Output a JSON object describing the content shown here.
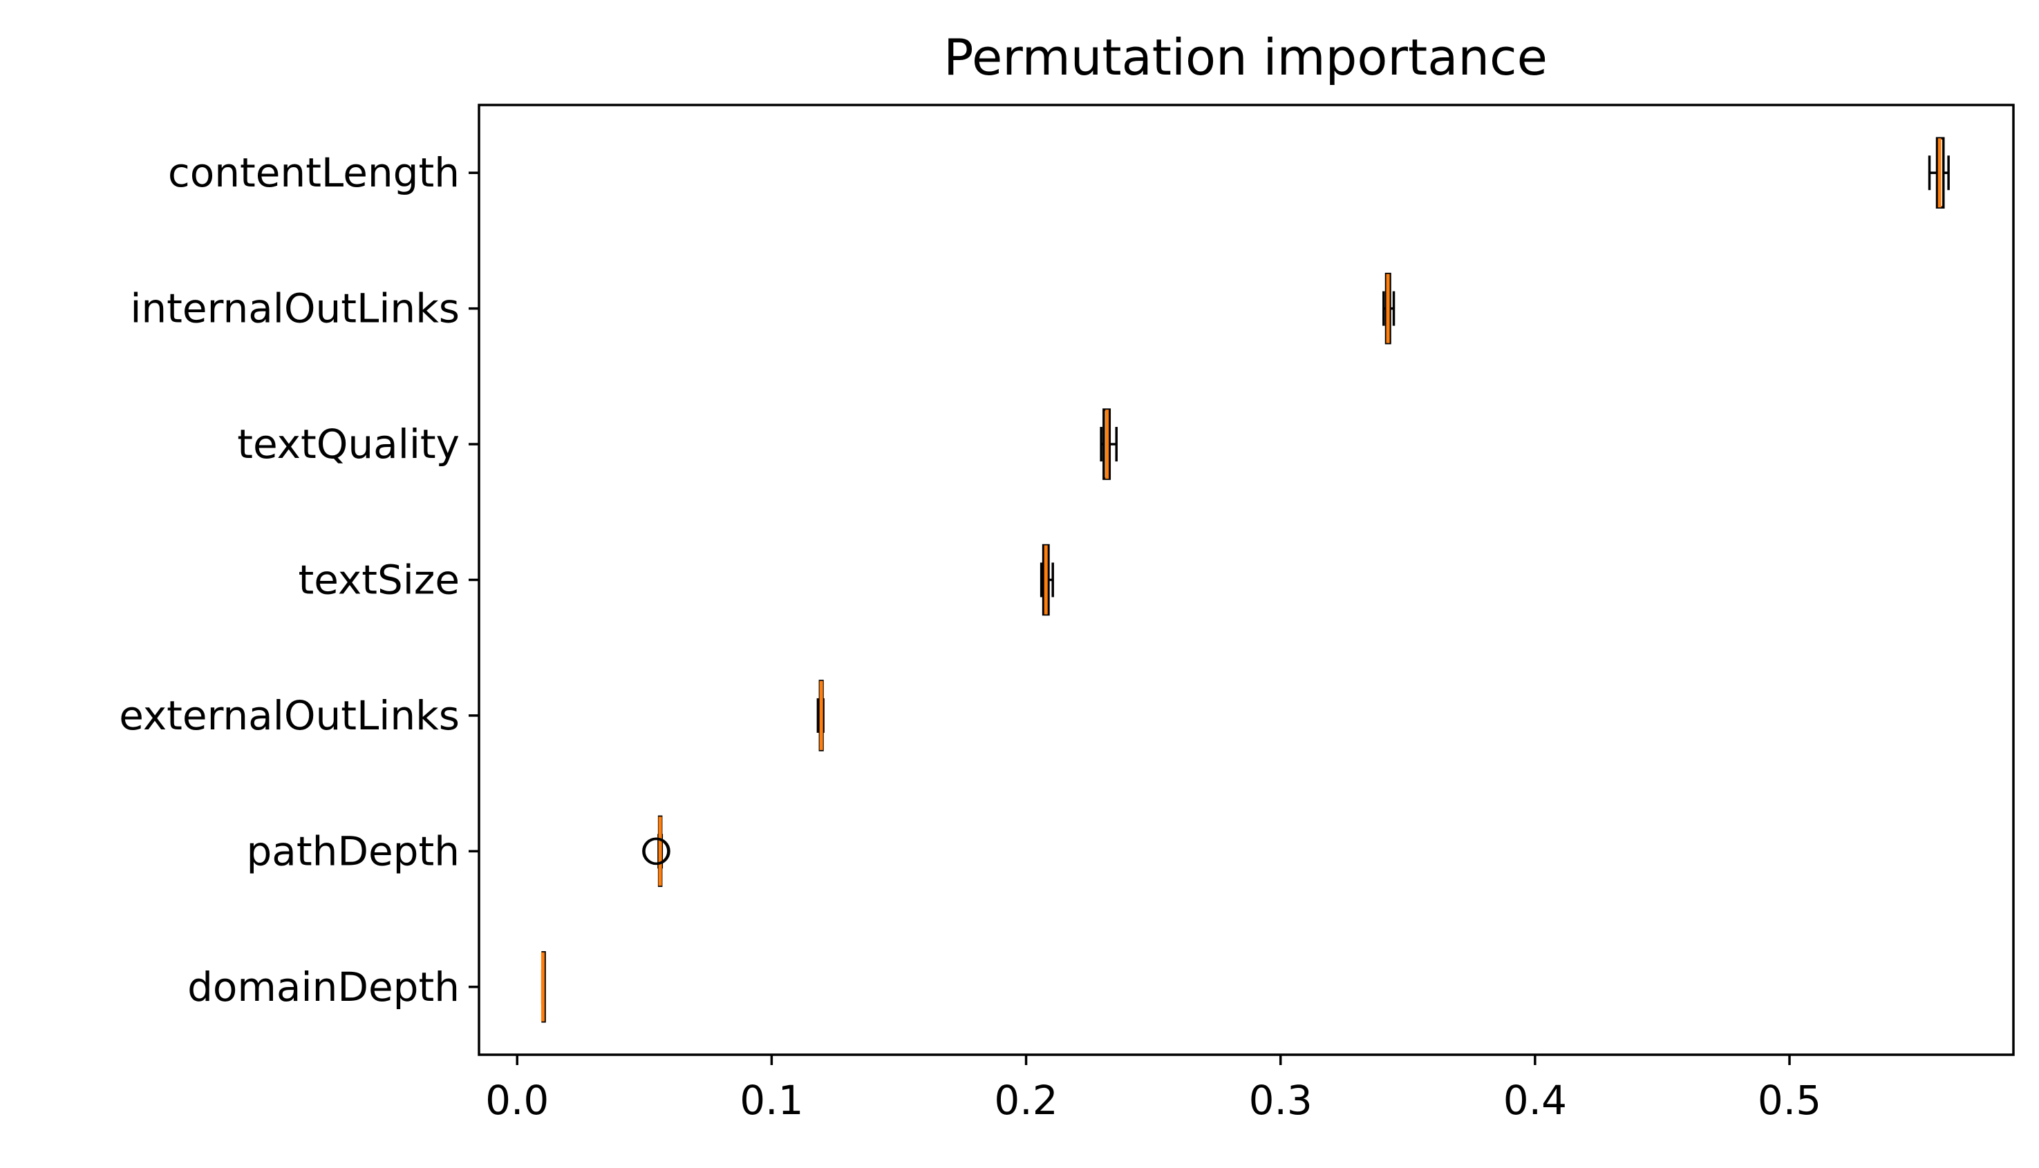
{
  "chart_data": {
    "type": "boxplot",
    "orientation": "horizontal",
    "title": "Permutation importance",
    "xlabel": "",
    "ylabel": "",
    "xlim": [
      -0.015,
      0.588
    ],
    "x_ticks": [
      0.0,
      0.1,
      0.2,
      0.3,
      0.4,
      0.5
    ],
    "x_tick_labels": [
      "0.0",
      "0.1",
      "0.2",
      "0.3",
      "0.4",
      "0.5"
    ],
    "grid": false,
    "categories": [
      "contentLength",
      "internalOutLinks",
      "textQuality",
      "textSize",
      "externalOutLinks",
      "pathDepth",
      "domainDepth"
    ],
    "boxes": [
      {
        "category": "contentLength",
        "whisker_low": 0.555,
        "q1": 0.558,
        "median": 0.559,
        "q3": 0.5605,
        "whisker_high": 0.5625,
        "outliers": []
      },
      {
        "category": "internalOutLinks",
        "whisker_low": 0.3405,
        "q1": 0.3415,
        "median": 0.3422,
        "q3": 0.343,
        "whisker_high": 0.3445,
        "outliers": []
      },
      {
        "category": "textQuality",
        "whisker_low": 0.2295,
        "q1": 0.2305,
        "median": 0.2318,
        "q3": 0.2328,
        "whisker_high": 0.2355,
        "outliers": []
      },
      {
        "category": "textSize",
        "whisker_low": 0.206,
        "q1": 0.2068,
        "median": 0.2078,
        "q3": 0.2088,
        "whisker_high": 0.2105,
        "outliers": []
      },
      {
        "category": "externalOutLinks",
        "whisker_low": 0.1182,
        "q1": 0.119,
        "median": 0.1195,
        "q3": 0.12,
        "whisker_high": 0.1203,
        "outliers": []
      },
      {
        "category": "pathDepth",
        "whisker_low": 0.0556,
        "q1": 0.0558,
        "median": 0.0562,
        "q3": 0.0566,
        "whisker_high": 0.0568,
        "outliers": [
          0.0545,
          0.0548
        ]
      },
      {
        "category": "domainDepth",
        "whisker_low": 0.0099,
        "q1": 0.01,
        "median": 0.0101,
        "q3": 0.0102,
        "whisker_high": 0.0103,
        "outliers": []
      }
    ],
    "colors": {
      "median": "#ff7f0e",
      "box": "#000000",
      "axes": "#000000",
      "background": "#ffffff"
    }
  }
}
